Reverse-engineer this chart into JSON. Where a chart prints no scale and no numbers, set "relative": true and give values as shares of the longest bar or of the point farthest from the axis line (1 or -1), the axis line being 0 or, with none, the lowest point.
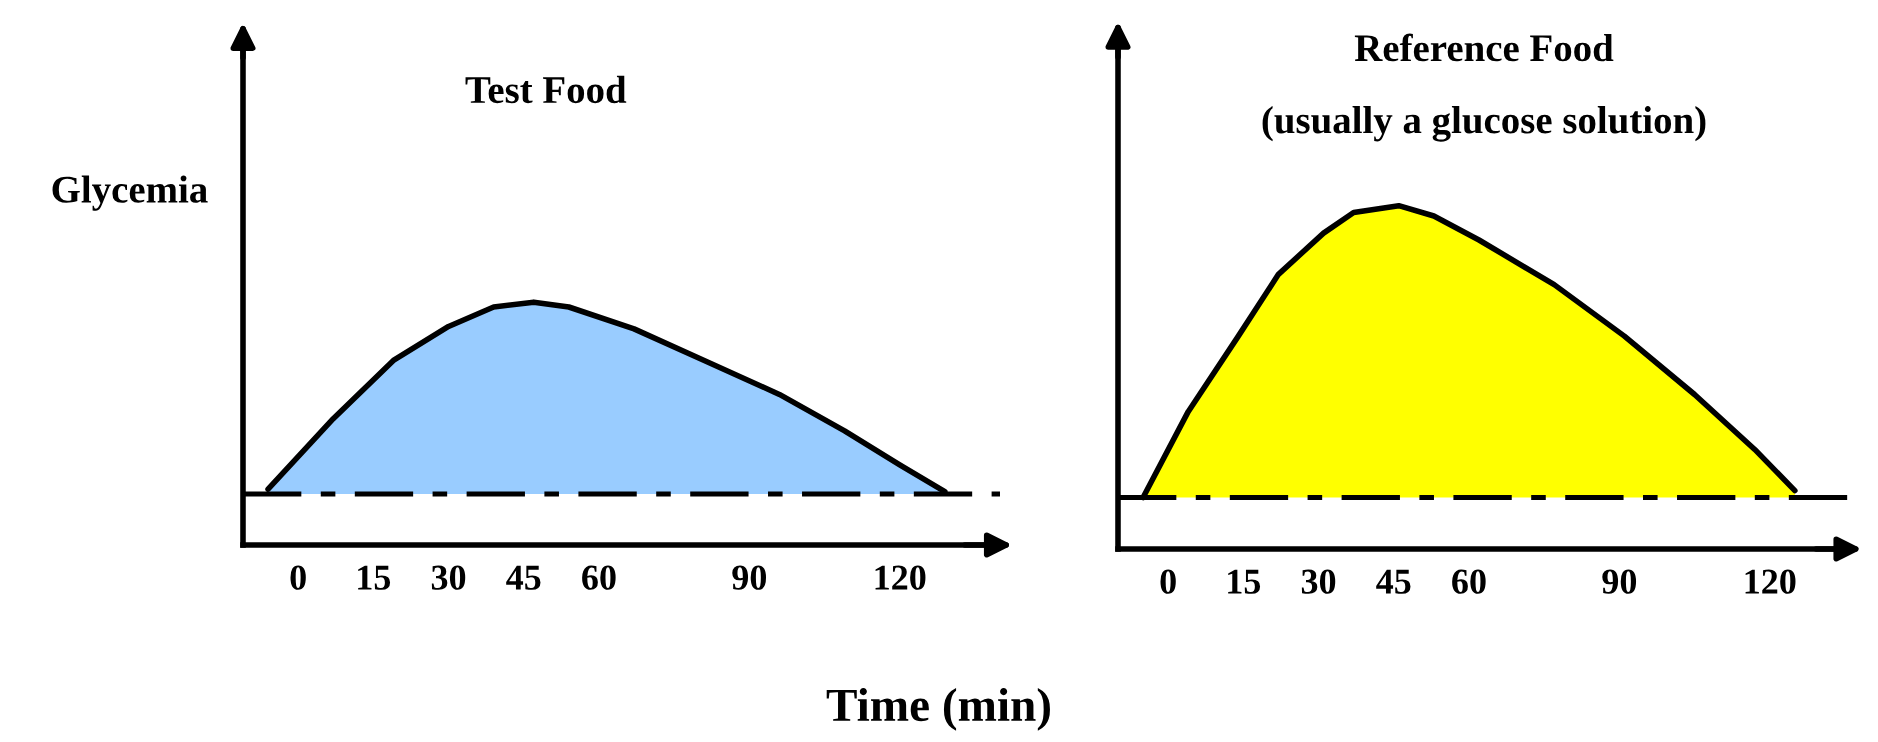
{
  "chart_data": [
    {
      "type": "area",
      "title": "Test Food",
      "ylabel": "Glycemia",
      "relative": true,
      "x": [
        -6,
        7,
        19,
        30,
        39,
        47,
        54,
        67,
        81,
        96,
        109,
        120,
        129
      ],
      "series": [
        {
          "color": "#99ccff",
          "values": [
            0.23,
            0.52,
            0.76,
            0.9,
            0.98,
            1.0,
            0.98,
            0.89,
            0.76,
            0.62,
            0.47,
            0.33,
            0.22
          ]
        }
      ],
      "xlim": [
        -11,
        140
      ],
      "xticks": [
        0,
        15,
        30,
        45,
        60,
        90,
        120
      ],
      "ref_lines": [
        {
          "axis": "y",
          "value": 0.21,
          "line_style": "dashed",
          "color": "#000000"
        }
      ],
      "annotations": [
        "Time (min)"
      ]
    },
    {
      "type": "area",
      "title": "Reference Food",
      "subtitle": "(usually a glucose solution)",
      "relative": true,
      "x": [
        -5,
        4,
        14,
        22,
        31,
        37,
        46,
        53,
        62,
        77,
        91,
        105,
        117,
        125
      ],
      "series": [
        {
          "color": "#ffff00",
          "values": [
            0.15,
            0.4,
            0.62,
            0.8,
            0.92,
            0.98,
            1.0,
            0.97,
            0.9,
            0.77,
            0.62,
            0.45,
            0.29,
            0.17
          ]
        }
      ],
      "xlim": [
        -10,
        136
      ],
      "xticks": [
        0,
        15,
        30,
        45,
        60,
        90,
        120
      ],
      "ref_lines": [
        {
          "axis": "y",
          "value": 0.15,
          "line_style": "dashed",
          "color": "#000000"
        }
      ]
    }
  ]
}
